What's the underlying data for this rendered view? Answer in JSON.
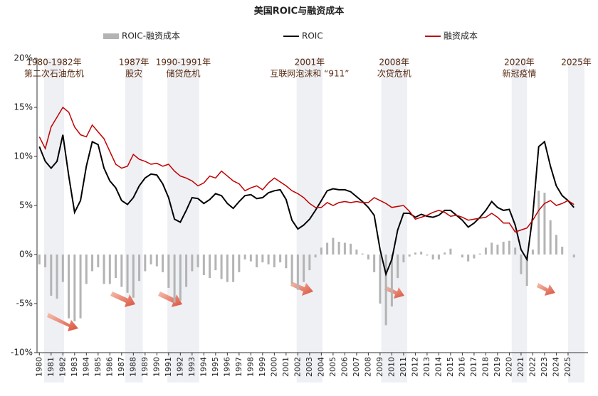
{
  "chart_data": {
    "type": "combo",
    "title": "美国ROIC与融资成本",
    "x": [
      1980,
      1980.5,
      1981,
      1981.5,
      1982,
      1982.5,
      1983,
      1983.5,
      1984,
      1984.5,
      1985,
      1985.5,
      1986,
      1986.5,
      1987,
      1987.5,
      1988,
      1988.5,
      1989,
      1989.5,
      1990,
      1990.5,
      1991,
      1991.5,
      1992,
      1992.5,
      1993,
      1993.5,
      1994,
      1994.5,
      1995,
      1995.5,
      1996,
      1996.5,
      1997,
      1997.5,
      1998,
      1998.5,
      1999,
      1999.5,
      2000,
      2000.5,
      2001,
      2001.5,
      2002,
      2002.5,
      2003,
      2003.5,
      2004,
      2004.5,
      2005,
      2005.5,
      2006,
      2006.5,
      2007,
      2007.5,
      2008,
      2008.5,
      2009,
      2009.5,
      2010,
      2010.5,
      2011,
      2011.5,
      2012,
      2012.5,
      2013,
      2013.5,
      2014,
      2014.5,
      2015,
      2015.5,
      2016,
      2016.5,
      2017,
      2017.5,
      2018,
      2018.5,
      2019,
      2019.5,
      2020,
      2020.5,
      2021,
      2021.5,
      2022,
      2022.5,
      2023,
      2023.5,
      2024,
      2024.5,
      2025,
      2025.5
    ],
    "series": [
      {
        "name": "ROIC-融资成本",
        "type": "bar",
        "color": "#b4b4b4",
        "values": [
          -1.0,
          -1.3,
          -4.2,
          -4.5,
          -2.8,
          -6.5,
          -6.8,
          -6.5,
          -3,
          -1.7,
          -1.3,
          -3,
          -3,
          -2.4,
          -3.3,
          -3.9,
          -4.4,
          -2.7,
          -1.7,
          -1,
          -1.2,
          -1.8,
          -3.4,
          -4.9,
          -4.7,
          -3.3,
          -1.7,
          -1.3,
          -2.1,
          -2.4,
          -1.6,
          -2.5,
          -2.8,
          -2.8,
          -1.8,
          -0.5,
          -0.7,
          -1.3,
          -0.8,
          -1,
          -1.3,
          -0.8,
          -1.4,
          -3,
          -3.6,
          -2.8,
          -1.6,
          -0.3,
          0.7,
          1.2,
          1.7,
          1.3,
          1.2,
          1.1,
          0.5,
          0.1,
          -0.5,
          -1.8,
          -5,
          -7.2,
          -5.3,
          -2.4,
          -0.8,
          -0.2,
          0.2,
          0.3,
          -0.1,
          -0.5,
          -0.5,
          0.2,
          0.6,
          0,
          -0.3,
          -0.7,
          -0.4,
          0.1,
          0.7,
          1.2,
          1,
          1.3,
          1.4,
          0.7,
          -2,
          -3.2,
          0.5,
          6.5,
          6.3,
          3.5,
          2,
          0.8,
          0,
          -0.3
        ]
      },
      {
        "name": "ROIC",
        "type": "line",
        "color": "#000000",
        "values": [
          11,
          9.5,
          8.8,
          9.5,
          12.2,
          8,
          4.3,
          5.5,
          9,
          11.5,
          11.2,
          8.8,
          7.5,
          6.8,
          5.5,
          5.1,
          5.8,
          7,
          7.8,
          8.2,
          8.1,
          7.2,
          5.8,
          3.6,
          3.3,
          4.5,
          5.8,
          5.7,
          5.2,
          5.6,
          6.2,
          6,
          5.2,
          4.7,
          5.4,
          6,
          6.1,
          5.7,
          5.8,
          6.3,
          6.5,
          6.6,
          5.6,
          3.5,
          2.6,
          3,
          3.6,
          4.5,
          5.5,
          6.5,
          6.7,
          6.6,
          6.6,
          6.4,
          5.9,
          5.4,
          4.8,
          4,
          0.5,
          -2,
          -0.5,
          2.5,
          4.2,
          4.2,
          3.8,
          4.1,
          3.9,
          3.8,
          4,
          4.5,
          4.5,
          4,
          3.5,
          2.8,
          3.2,
          3.8,
          4.5,
          5.4,
          4.8,
          4.5,
          4.6,
          3,
          0.5,
          -0.5,
          4,
          11,
          11.5,
          9,
          7,
          6,
          5.5,
          4.8
        ]
      },
      {
        "name": "融资成本",
        "type": "line",
        "color": "#c00000",
        "values": [
          12,
          10.8,
          13,
          14,
          15,
          14.5,
          13,
          12.2,
          12,
          13.2,
          12.5,
          11.8,
          10.5,
          9.2,
          8.8,
          9,
          10.2,
          9.7,
          9.5,
          9.2,
          9.3,
          9,
          9.2,
          8.5,
          8,
          7.8,
          7.5,
          7,
          7.3,
          8,
          7.8,
          8.5,
          8,
          7.5,
          7.2,
          6.5,
          6.8,
          7,
          6.6,
          7.3,
          7.8,
          7.4,
          7,
          6.5,
          6.2,
          5.8,
          5.2,
          4.8,
          4.8,
          5.3,
          5,
          5.3,
          5.4,
          5.3,
          5.4,
          5.3,
          5.3,
          5.8,
          5.5,
          5.2,
          4.8,
          4.9,
          5,
          4.4,
          3.6,
          3.8,
          4,
          4.3,
          4.5,
          4.3,
          3.9,
          4,
          3.8,
          3.5,
          3.6,
          3.7,
          3.8,
          4.2,
          3.8,
          3.2,
          3.2,
          2.3,
          2.5,
          2.7,
          3.5,
          4.5,
          5.2,
          5.5,
          5,
          5.2,
          5.5,
          5.1
        ]
      }
    ],
    "xlim": [
      1979.8,
      2026.7
    ],
    "xticks": [
      1980,
      1981,
      1982,
      1983,
      1984,
      1985,
      1986,
      1987,
      1988,
      1989,
      1990,
      1991,
      1992,
      1993,
      1994,
      1995,
      1996,
      1997,
      1998,
      1999,
      2000,
      2001,
      2002,
      2003,
      2004,
      2005,
      2006,
      2007,
      2008,
      2009,
      2010,
      2011,
      2012,
      2013,
      2014,
      2015,
      2016,
      2017,
      2018,
      2019,
      2020,
      2021,
      2022,
      2023,
      2024,
      2025
    ],
    "ylim": [
      -10,
      20
    ],
    "yticks": [
      {
        "value": -10,
        "label": "-10%"
      },
      {
        "value": -5,
        "label": "-5%"
      },
      {
        "value": 0,
        "label": "0%"
      },
      {
        "value": 5,
        "label": "5%"
      },
      {
        "value": 10,
        "label": "10%"
      },
      {
        "value": 15,
        "label": "15%"
      },
      {
        "value": 20,
        "label": "20%"
      }
    ],
    "band_color": "#eef0f4",
    "annotations": [
      {
        "lines": [
          "1980-1982年",
          "第二次石油危机"
        ],
        "start": 1980.4,
        "end": 1982.1
      },
      {
        "lines": [
          "1987年",
          "股灾"
        ],
        "start": 1987.3,
        "end": 1988.8
      },
      {
        "lines": [
          "1990-1991年",
          "储贷危机"
        ],
        "start": 1990.9,
        "end": 1993.6
      },
      {
        "lines": [
          "2001年",
          "互联网泡沫和 “911”"
        ],
        "start": 2001.9,
        "end": 2004.1
      },
      {
        "lines": [
          "2008年",
          "次贷危机"
        ],
        "start": 2009.1,
        "end": 2011.3
      },
      {
        "lines": [
          "2020年",
          "新冠疫情"
        ],
        "start": 2020.2,
        "end": 2021.5
      },
      {
        "lines": [
          "2025年"
        ],
        "start": 2025.0,
        "end": 2026.4
      }
    ]
  }
}
